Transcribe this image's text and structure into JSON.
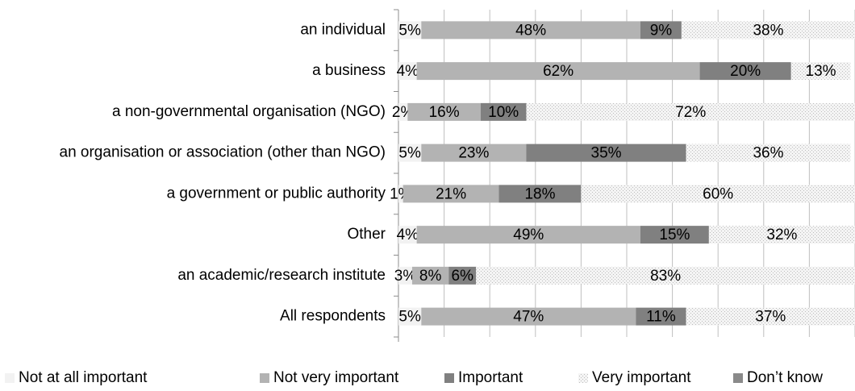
{
  "chart_data": {
    "type": "stacked-bar-horizontal",
    "categories": [
      "an individual",
      "a business",
      "a non-governmental organisation (NGO)",
      "an organisation or association (other than NGO)",
      "a government or public authority",
      "Other",
      "an academic/research institute",
      "All respondents"
    ],
    "series": [
      {
        "name": "Not at all important",
        "color": "#f2f2f2",
        "values": [
          5,
          4,
          2,
          5,
          1,
          4,
          3,
          5
        ],
        "value_labels": [
          "5%",
          "4%",
          "2%",
          "5%",
          "1%",
          "4%",
          "3%",
          "5%"
        ]
      },
      {
        "name": "Not very important",
        "color": "#b3b3b3",
        "values": [
          48,
          62,
          16,
          23,
          21,
          49,
          8,
          47
        ],
        "value_labels": [
          "48%",
          "62%",
          "16%",
          "23%",
          "21%",
          "49%",
          "8%",
          "47%"
        ]
      },
      {
        "name": "Important",
        "color": "#808080",
        "values": [
          9,
          20,
          10,
          35,
          18,
          15,
          6,
          11
        ],
        "value_labels": [
          "9%",
          "20%",
          "10%",
          "35%",
          "18%",
          "15%",
          "6%",
          "11%"
        ]
      },
      {
        "name": "Very important",
        "color": "#dcdcdc",
        "hatch": true,
        "values": [
          38,
          13,
          72,
          36,
          60,
          32,
          83,
          37
        ],
        "value_labels": [
          "38%",
          "13%",
          "72%",
          "36%",
          "60%",
          "32%",
          "83%",
          "37%"
        ]
      },
      {
        "name": "Don’t know",
        "color": "#8a8a8a",
        "values": [
          null,
          null,
          null,
          null,
          null,
          null,
          null,
          null
        ]
      }
    ],
    "xlim": [
      0,
      100
    ],
    "xticks": [
      0,
      10,
      20,
      30,
      40,
      50,
      60,
      70,
      80,
      90,
      100
    ],
    "grid": true,
    "legend": "bottom"
  }
}
